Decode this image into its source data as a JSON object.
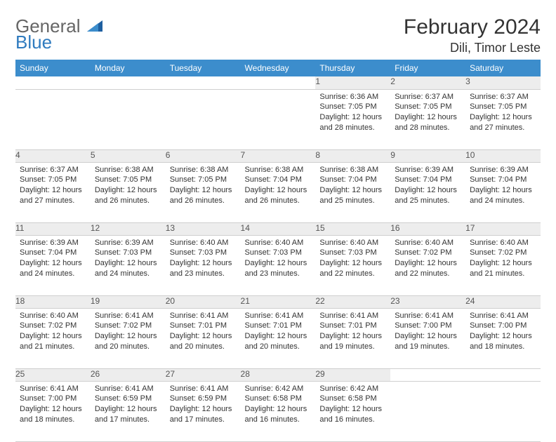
{
  "logo": {
    "general": "General",
    "blue": "Blue"
  },
  "title": "February 2024",
  "location": "Dili, Timor Leste",
  "colors": {
    "header_bg": "#3c8dcc",
    "header_text": "#ffffff",
    "daynum_bg": "#ededed",
    "border": "#cfcfcf",
    "text": "#333333",
    "logo_gray": "#666666",
    "logo_blue": "#2f7bbf"
  },
  "weekdays": [
    "Sunday",
    "Monday",
    "Tuesday",
    "Wednesday",
    "Thursday",
    "Friday",
    "Saturday"
  ],
  "weeks": [
    [
      null,
      null,
      null,
      null,
      {
        "n": "1",
        "sr": "Sunrise: 6:36 AM",
        "ss": "Sunset: 7:05 PM",
        "dl": "Daylight: 12 hours and 28 minutes."
      },
      {
        "n": "2",
        "sr": "Sunrise: 6:37 AM",
        "ss": "Sunset: 7:05 PM",
        "dl": "Daylight: 12 hours and 28 minutes."
      },
      {
        "n": "3",
        "sr": "Sunrise: 6:37 AM",
        "ss": "Sunset: 7:05 PM",
        "dl": "Daylight: 12 hours and 27 minutes."
      }
    ],
    [
      {
        "n": "4",
        "sr": "Sunrise: 6:37 AM",
        "ss": "Sunset: 7:05 PM",
        "dl": "Daylight: 12 hours and 27 minutes."
      },
      {
        "n": "5",
        "sr": "Sunrise: 6:38 AM",
        "ss": "Sunset: 7:05 PM",
        "dl": "Daylight: 12 hours and 26 minutes."
      },
      {
        "n": "6",
        "sr": "Sunrise: 6:38 AM",
        "ss": "Sunset: 7:05 PM",
        "dl": "Daylight: 12 hours and 26 minutes."
      },
      {
        "n": "7",
        "sr": "Sunrise: 6:38 AM",
        "ss": "Sunset: 7:04 PM",
        "dl": "Daylight: 12 hours and 26 minutes."
      },
      {
        "n": "8",
        "sr": "Sunrise: 6:38 AM",
        "ss": "Sunset: 7:04 PM",
        "dl": "Daylight: 12 hours and 25 minutes."
      },
      {
        "n": "9",
        "sr": "Sunrise: 6:39 AM",
        "ss": "Sunset: 7:04 PM",
        "dl": "Daylight: 12 hours and 25 minutes."
      },
      {
        "n": "10",
        "sr": "Sunrise: 6:39 AM",
        "ss": "Sunset: 7:04 PM",
        "dl": "Daylight: 12 hours and 24 minutes."
      }
    ],
    [
      {
        "n": "11",
        "sr": "Sunrise: 6:39 AM",
        "ss": "Sunset: 7:04 PM",
        "dl": "Daylight: 12 hours and 24 minutes."
      },
      {
        "n": "12",
        "sr": "Sunrise: 6:39 AM",
        "ss": "Sunset: 7:03 PM",
        "dl": "Daylight: 12 hours and 24 minutes."
      },
      {
        "n": "13",
        "sr": "Sunrise: 6:40 AM",
        "ss": "Sunset: 7:03 PM",
        "dl": "Daylight: 12 hours and 23 minutes."
      },
      {
        "n": "14",
        "sr": "Sunrise: 6:40 AM",
        "ss": "Sunset: 7:03 PM",
        "dl": "Daylight: 12 hours and 23 minutes."
      },
      {
        "n": "15",
        "sr": "Sunrise: 6:40 AM",
        "ss": "Sunset: 7:03 PM",
        "dl": "Daylight: 12 hours and 22 minutes."
      },
      {
        "n": "16",
        "sr": "Sunrise: 6:40 AM",
        "ss": "Sunset: 7:02 PM",
        "dl": "Daylight: 12 hours and 22 minutes."
      },
      {
        "n": "17",
        "sr": "Sunrise: 6:40 AM",
        "ss": "Sunset: 7:02 PM",
        "dl": "Daylight: 12 hours and 21 minutes."
      }
    ],
    [
      {
        "n": "18",
        "sr": "Sunrise: 6:40 AM",
        "ss": "Sunset: 7:02 PM",
        "dl": "Daylight: 12 hours and 21 minutes."
      },
      {
        "n": "19",
        "sr": "Sunrise: 6:41 AM",
        "ss": "Sunset: 7:02 PM",
        "dl": "Daylight: 12 hours and 20 minutes."
      },
      {
        "n": "20",
        "sr": "Sunrise: 6:41 AM",
        "ss": "Sunset: 7:01 PM",
        "dl": "Daylight: 12 hours and 20 minutes."
      },
      {
        "n": "21",
        "sr": "Sunrise: 6:41 AM",
        "ss": "Sunset: 7:01 PM",
        "dl": "Daylight: 12 hours and 20 minutes."
      },
      {
        "n": "22",
        "sr": "Sunrise: 6:41 AM",
        "ss": "Sunset: 7:01 PM",
        "dl": "Daylight: 12 hours and 19 minutes."
      },
      {
        "n": "23",
        "sr": "Sunrise: 6:41 AM",
        "ss": "Sunset: 7:00 PM",
        "dl": "Daylight: 12 hours and 19 minutes."
      },
      {
        "n": "24",
        "sr": "Sunrise: 6:41 AM",
        "ss": "Sunset: 7:00 PM",
        "dl": "Daylight: 12 hours and 18 minutes."
      }
    ],
    [
      {
        "n": "25",
        "sr": "Sunrise: 6:41 AM",
        "ss": "Sunset: 7:00 PM",
        "dl": "Daylight: 12 hours and 18 minutes."
      },
      {
        "n": "26",
        "sr": "Sunrise: 6:41 AM",
        "ss": "Sunset: 6:59 PM",
        "dl": "Daylight: 12 hours and 17 minutes."
      },
      {
        "n": "27",
        "sr": "Sunrise: 6:41 AM",
        "ss": "Sunset: 6:59 PM",
        "dl": "Daylight: 12 hours and 17 minutes."
      },
      {
        "n": "28",
        "sr": "Sunrise: 6:42 AM",
        "ss": "Sunset: 6:58 PM",
        "dl": "Daylight: 12 hours and 16 minutes."
      },
      {
        "n": "29",
        "sr": "Sunrise: 6:42 AM",
        "ss": "Sunset: 6:58 PM",
        "dl": "Daylight: 12 hours and 16 minutes."
      },
      null,
      null
    ]
  ]
}
